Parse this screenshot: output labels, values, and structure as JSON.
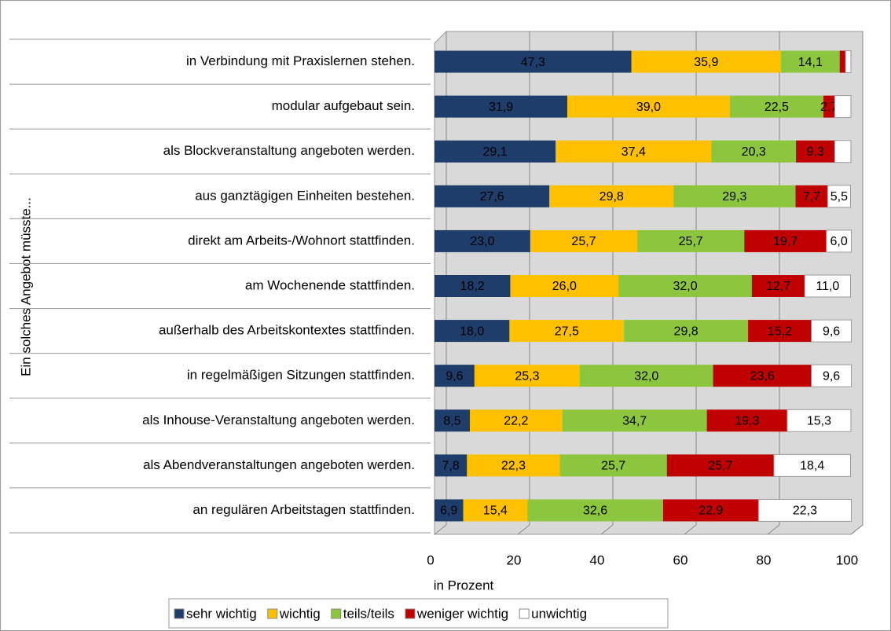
{
  "chart_data": {
    "type": "stacked-bar-horizontal",
    "y_axis_label": "Ein solches Angebot müsste...",
    "x_axis_label": "in Prozent",
    "categories": [
      "in Verbindung mit Praxislernen stehen.",
      "modular aufgebaut sein.",
      "als Blockveranstaltung angeboten werden.",
      "aus ganztägigen Einheiten bestehen.",
      "direkt am Arbeits-/Wohnort stattfinden.",
      "am Wochenende stattfinden.",
      "außerhalb des Arbeitskontextes stattfinden.",
      "in regelmäßigen Sitzungen stattfinden.",
      "als Inhouse-Veranstaltung angeboten werden.",
      "als Abendveranstaltungen angeboten werden.",
      "an regulären Arbeitstagen stattfinden."
    ],
    "series": [
      {
        "name": "sehr wichtig",
        "color": "#1f3d6b",
        "values": [
          47.3,
          31.9,
          29.1,
          27.6,
          23.0,
          18.2,
          18.0,
          9.6,
          8.5,
          7.8,
          6.9
        ],
        "value_labels": [
          "47,3",
          "31,9",
          "29,1",
          "27,6",
          "23,0",
          "18,2",
          "18,0",
          "9,6",
          "8,5",
          "7,8",
          "6,9"
        ]
      },
      {
        "name": "wichtig",
        "color": "#ffc000",
        "values": [
          35.9,
          39.0,
          37.4,
          29.8,
          25.7,
          26.0,
          27.5,
          25.3,
          22.2,
          22.3,
          15.4
        ],
        "value_labels": [
          "35,9",
          "39,0",
          "37,4",
          "29,8",
          "25,7",
          "26,0",
          "27,5",
          "25,3",
          "22,2",
          "22,3",
          "15,4"
        ]
      },
      {
        "name": "teils/teils",
        "color": "#8cc63f",
        "values": [
          14.1,
          22.5,
          20.3,
          29.3,
          25.7,
          32.0,
          29.8,
          32.0,
          34.7,
          25.7,
          32.6
        ],
        "value_labels": [
          "14,1",
          "22,5",
          "20,3",
          "29,3",
          "25,7",
          "32,0",
          "29,8",
          "32,0",
          "34,7",
          "25,7",
          "32,6"
        ]
      },
      {
        "name": "weniger wichtig",
        "color": "#c00000",
        "values": [
          1.4,
          2.7,
          9.3,
          7.7,
          19.7,
          12.7,
          15.2,
          23.6,
          19.3,
          25.7,
          22.9
        ],
        "value_labels": [
          null,
          "2,7",
          "9,3",
          "7,7",
          "19,7",
          "12,7",
          "15,2",
          "23,6",
          "19,3",
          "25,7",
          "22,9"
        ]
      },
      {
        "name": "unwichtig",
        "color": "#ffffff",
        "values": [
          1.3,
          3.9,
          3.9,
          5.5,
          6.0,
          11.0,
          9.6,
          9.6,
          15.3,
          18.4,
          22.3
        ],
        "value_labels": [
          null,
          null,
          null,
          "5,5",
          "6,0",
          "11,0",
          "9,6",
          "9,6",
          "15,3",
          "18,4",
          "22,3"
        ]
      }
    ],
    "xlim": [
      0,
      100
    ],
    "xticks": [
      0,
      20,
      40,
      60,
      80,
      100
    ],
    "grid": true,
    "legend_position": "bottom"
  }
}
